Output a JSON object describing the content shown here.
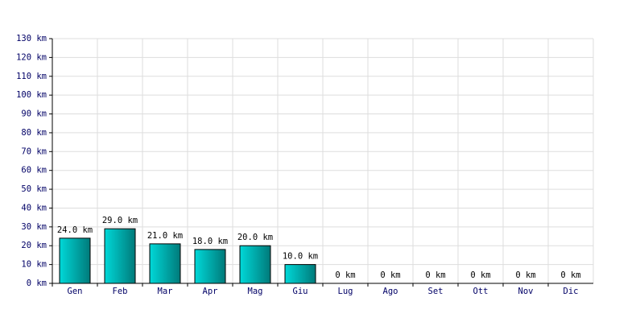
{
  "chart_data": {
    "type": "bar",
    "categories": [
      "Gen",
      "Feb",
      "Mar",
      "Apr",
      "Mag",
      "Giu",
      "Lug",
      "Ago",
      "Set",
      "Ott",
      "Nov",
      "Dic"
    ],
    "values": [
      24,
      29,
      21,
      18,
      20,
      10,
      0,
      0,
      0,
      0,
      0,
      0
    ],
    "value_labels": [
      "24.0 km",
      "29.0 km",
      "21.0 km",
      "18.0 km",
      "20.0 km",
      "10.0 km",
      "0 km",
      "0 km",
      "0 km",
      "0 km",
      "0 km",
      "0 km"
    ],
    "color": "#00d8d8",
    "ylim": [
      0,
      130
    ],
    "yticks": [
      {
        "value": 0,
        "label": "0 km"
      },
      {
        "value": 10,
        "label": "10 km"
      },
      {
        "value": 20,
        "label": "20 km"
      },
      {
        "value": 30,
        "label": "30 km"
      },
      {
        "value": 40,
        "label": "40 km"
      },
      {
        "value": 50,
        "label": "50 km"
      },
      {
        "value": 60,
        "label": "60 km"
      },
      {
        "value": 70,
        "label": "70 km"
      },
      {
        "value": 80,
        "label": "80 km"
      },
      {
        "value": 90,
        "label": "90 km"
      },
      {
        "value": 100,
        "label": "100 km"
      },
      {
        "value": 110,
        "label": "110 km"
      },
      {
        "value": 120,
        "label": "120 km"
      },
      {
        "value": 130,
        "label": "130 km"
      }
    ],
    "grid": true
  }
}
